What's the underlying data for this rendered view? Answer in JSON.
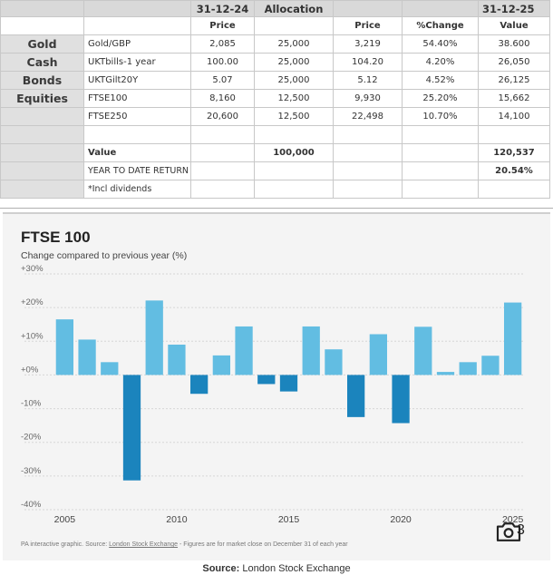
{
  "table": {
    "header": {
      "date1": "31-12-24",
      "allocation": "Allocation",
      "date2": "31-12-25"
    },
    "subheader": {
      "price1": "Price",
      "price2": "Price",
      "change": "%Change",
      "value": "Value"
    },
    "rows": [
      {
        "category": "Gold",
        "name": "Gold/GBP",
        "price1": "2,085",
        "alloc": "25,000",
        "price2": "3,219",
        "change": "54.40%",
        "value": "38.600"
      },
      {
        "category": "Cash",
        "name": "UKTbills-1 year",
        "price1": "100.00",
        "alloc": "25,000",
        "price2": "104.20",
        "change": "4.20%",
        "value": "26,050"
      },
      {
        "category": "Bonds",
        "name": "UKTGilt20Y",
        "price1": "5.07",
        "alloc": "25,000",
        "price2": "5.12",
        "change": "4.52%",
        "value": "26,125"
      },
      {
        "category": "Equities",
        "name": "FTSE100",
        "price1": "8,160",
        "alloc": "12,500",
        "price2": "9,930",
        "change": "25.20%",
        "value": "15,662"
      },
      {
        "category": "",
        "name": "FTSE250",
        "price1": "20,600",
        "alloc": "12,500",
        "price2": "22,498",
        "change": "10.70%",
        "value": "14,100"
      }
    ],
    "value_label": "Value",
    "value_alloc": "100,000",
    "value_total": "120,537",
    "ytd_label": "YEAR TO DATE RETURN",
    "ytd_value": "20.54%",
    "note": "*Incl dividends"
  },
  "chart_data": {
    "type": "bar",
    "title": "FTSE 100",
    "subtitle": "Change compared to previous year (%)",
    "xlabel": "",
    "ylabel": "Change compared to previous year (%)",
    "ylim": [
      -40,
      30
    ],
    "yticks": [
      "+30%",
      "+20%",
      "+10%",
      "+0%",
      "-10%",
      "-20%",
      "-30%",
      "-40%"
    ],
    "xticks": [
      "2005",
      "2010",
      "2015",
      "2020",
      "2025"
    ],
    "categories": [
      "2005",
      "2006",
      "2007",
      "2008",
      "2009",
      "2010",
      "2011",
      "2012",
      "2013",
      "2014",
      "2015",
      "2016",
      "2017",
      "2018",
      "2019",
      "2020",
      "2021",
      "2022",
      "2023",
      "2024",
      "2025"
    ],
    "values": [
      16.5,
      10.5,
      3.8,
      -31.3,
      22.1,
      9.0,
      -5.6,
      5.8,
      14.4,
      -2.7,
      -4.9,
      14.4,
      7.6,
      -12.5,
      12.1,
      -14.3,
      14.3,
      0.9,
      3.8,
      5.7,
      21.5
    ],
    "colors": {
      "positive": "#62bde2",
      "negative": "#1b84bd",
      "grid": "#d6d6d6"
    },
    "footnote_prefix": "PA interactive graphic. Source: ",
    "footnote_source": "London Stock Exchange",
    "footnote_suffix": " - Figures are for market close on December 31 of each year",
    "photo_count": "3"
  },
  "source": {
    "label": "Source:",
    "text": " London Stock Exchange"
  }
}
